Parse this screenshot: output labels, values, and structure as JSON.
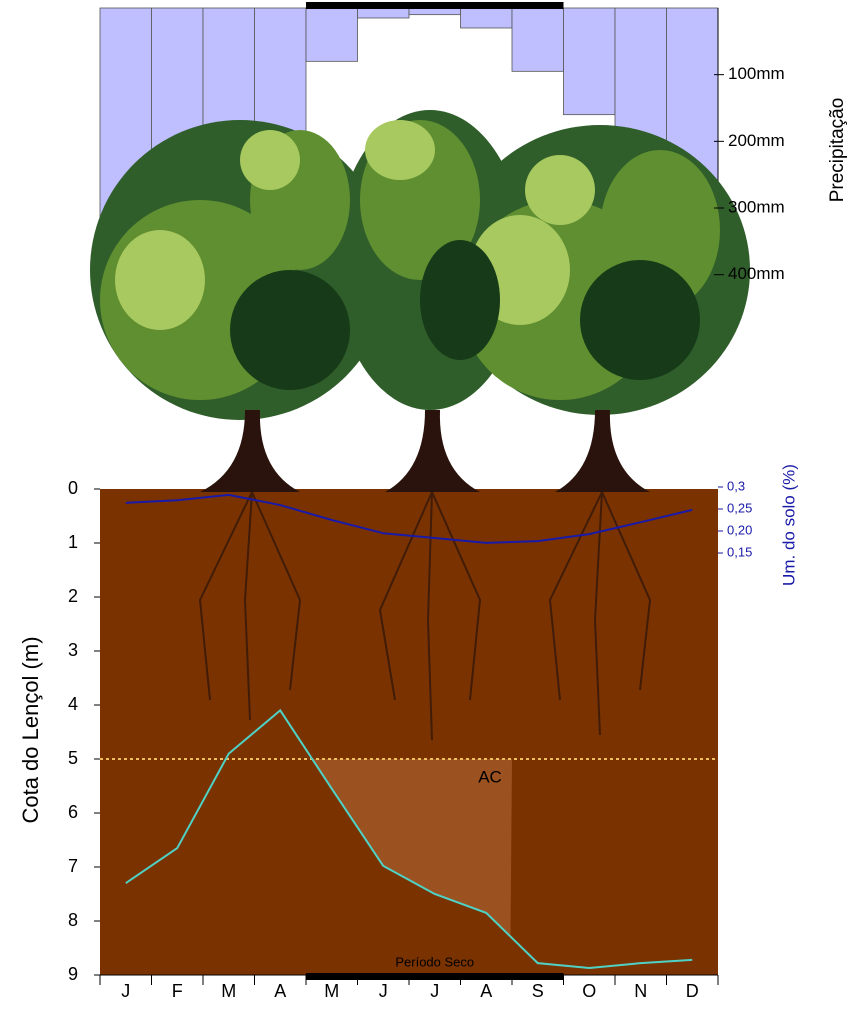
{
  "chart_data": [
    {
      "type": "bar",
      "y_label": "Precipitação",
      "color": "#bfbfff",
      "values": [
        320,
        290,
        320,
        300,
        80,
        15,
        10,
        30,
        95,
        160,
        200,
        300
      ],
      "ylim": [
        0,
        420
      ],
      "yticks": [
        {
          "value": 100,
          "label": "100mm"
        },
        {
          "value": 200,
          "label": "200mm"
        },
        {
          "value": 300,
          "label": "300mm"
        },
        {
          "value": 400,
          "label": "400mm"
        }
      ]
    },
    {
      "type": "line",
      "y_label": "Um. do solo (%)",
      "color": "#1a1aa8",
      "values": [
        0.264,
        0.27,
        0.282,
        0.259,
        0.225,
        0.195,
        0.184,
        0.173,
        0.177,
        0.193,
        0.22,
        0.248
      ],
      "ylim": [
        0.15,
        0.3
      ],
      "yticks": [
        {
          "value": 0.3,
          "label": "0,3"
        },
        {
          "value": 0.25,
          "label": "0,25"
        },
        {
          "value": 0.2,
          "label": "0,20"
        },
        {
          "value": 0.15,
          "label": "0,15"
        }
      ]
    },
    {
      "type": "line",
      "y_label": "Cota do Lençol (m)",
      "color": "#4fd1c5",
      "categories": [
        "J",
        "F",
        "M",
        "A",
        "M",
        "J",
        "J",
        "A",
        "S",
        "O",
        "N",
        "D"
      ],
      "values": [
        7.3,
        6.65,
        4.9,
        4.1,
        5.55,
        6.98,
        7.5,
        7.85,
        8.78,
        8.87,
        8.78,
        8.72
      ],
      "ylim": [
        0,
        9
      ],
      "yticks": [
        0,
        1,
        2,
        3,
        4,
        5,
        6,
        7,
        8,
        9
      ],
      "inverted": true,
      "reference_line": 5,
      "reference_color": "#f0c060",
      "annotations": [
        "AC",
        "Período Seco"
      ]
    }
  ]
}
